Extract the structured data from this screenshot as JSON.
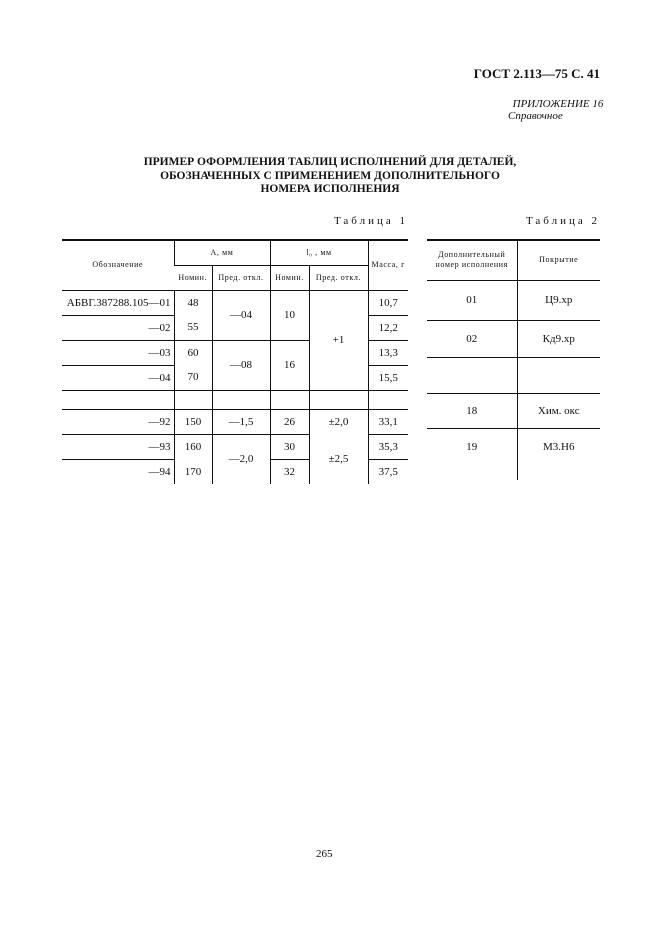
{
  "header": {
    "gost": "ГОСТ 2.113—75 С. 41",
    "appendix": "ПРИЛОЖЕНИЕ 16",
    "reference": "Справочное"
  },
  "title": [
    "ПРИМЕР ОФОРМЛЕНИЯ ТАБЛИЦ ИСПОЛНЕНИЙ ДЛЯ ДЕТАЛЕЙ,",
    "ОБОЗНАЧЕННЫХ С ПРИМЕНЕНИЕМ ДОПОЛНИТЕЛЬНОГО",
    "НОМЕРА ИСПОЛНЕНИЯ"
  ],
  "table1": {
    "caption": "Таблица 1",
    "headers": {
      "designation": "Обозначение",
      "a": "A, мм",
      "l0": "l₀ , мм",
      "mass": "Масса, г",
      "nom": "Номин.",
      "tol": "Пред. откл."
    },
    "rows": [
      {
        "des": "АБВГ.387288.105—01",
        "a": "48",
        "at": "—04",
        "l": "10",
        "lt": "+1",
        "m": "10,7"
      },
      {
        "des": "—02",
        "a": "55",
        "m": "12,2"
      },
      {
        "des": "—03",
        "a": "60",
        "at": "—08",
        "l": "16",
        "m": "13,3"
      },
      {
        "des": "—04",
        "a": "70",
        "m": "15,5"
      },
      {
        "des": "—92",
        "a": "150",
        "at": "—1,5",
        "l": "26",
        "lt": "±2,0",
        "m": "33,1"
      },
      {
        "des": "—93",
        "a": "160",
        "at": "—2,0",
        "l": "30",
        "lt": "±2,5",
        "m": "35,3"
      },
      {
        "des": "—94",
        "a": "170",
        "l": "32",
        "m": "37,5"
      }
    ]
  },
  "table2": {
    "caption": "Таблица 2",
    "headers": {
      "num": "Дополнительный номер исполнения",
      "coat": "Покрытие"
    },
    "rows": [
      {
        "n": "01",
        "c": "Ц9.хр"
      },
      {
        "n": "02",
        "c": "Кд9.хр"
      },
      {
        "n": "18",
        "c": "Хим. окс"
      },
      {
        "n": "19",
        "c": "М3.Н6"
      }
    ]
  },
  "page_number": "265"
}
